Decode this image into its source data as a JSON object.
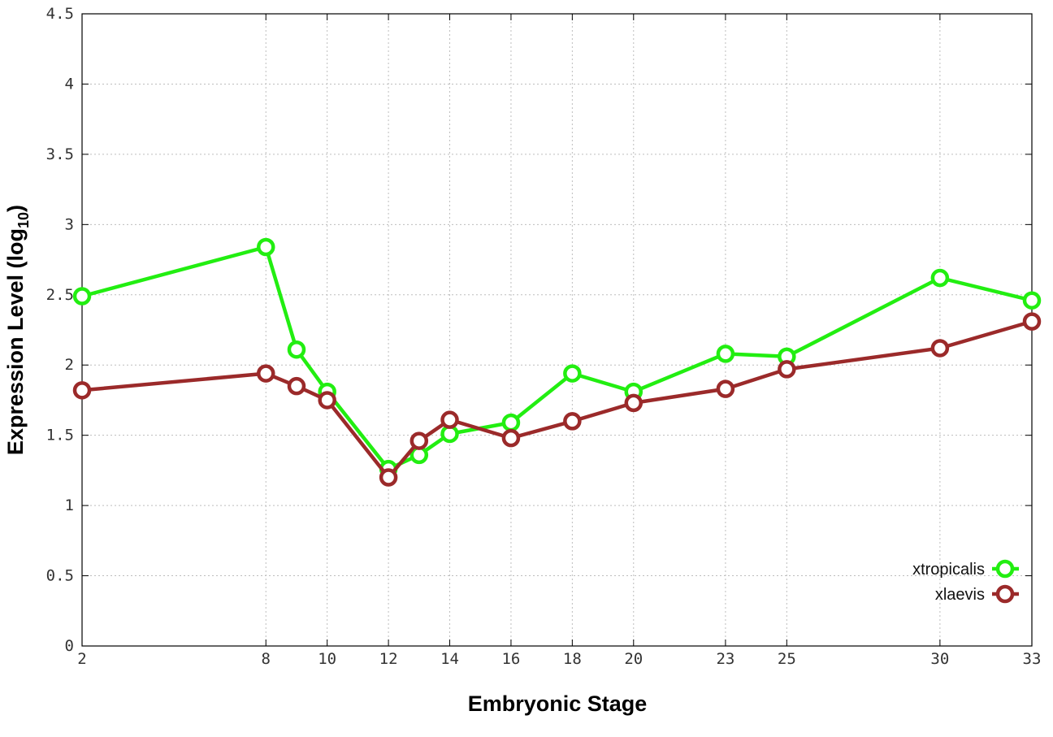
{
  "chart_data": {
    "type": "line",
    "xlabel": "Embryonic Stage",
    "ylabel_main": "Expression Level (log",
    "ylabel_sub": "10",
    "ylabel_close": ")",
    "x_ticks": [
      2,
      8,
      10,
      12,
      14,
      16,
      18,
      20,
      23,
      25,
      30,
      33
    ],
    "y_ticks": [
      "0",
      "0.5",
      "1",
      "1.5",
      "2",
      "2.5",
      "3",
      "3.5",
      "4",
      "4.5"
    ],
    "xlim": [
      2,
      33
    ],
    "ylim": [
      0,
      4.5
    ],
    "grid": true,
    "legend_position": "bottom-right",
    "series": [
      {
        "name": "xtropicalis",
        "color": "#22ee11",
        "x": [
          2,
          8,
          9,
          10,
          12,
          13,
          14,
          16,
          18,
          20,
          23,
          25,
          30,
          33
        ],
        "y": [
          2.49,
          2.84,
          2.11,
          1.81,
          1.26,
          1.36,
          1.51,
          1.59,
          1.94,
          1.81,
          2.08,
          2.06,
          2.62,
          2.46
        ]
      },
      {
        "name": "xlaevis",
        "color": "#9b2a2a",
        "x": [
          2,
          8,
          9,
          10,
          12,
          13,
          14,
          16,
          18,
          20,
          23,
          25,
          30,
          33
        ],
        "y": [
          1.82,
          1.94,
          1.85,
          1.75,
          1.2,
          1.46,
          1.61,
          1.48,
          1.6,
          1.73,
          1.83,
          1.97,
          2.12,
          2.31
        ]
      }
    ]
  }
}
